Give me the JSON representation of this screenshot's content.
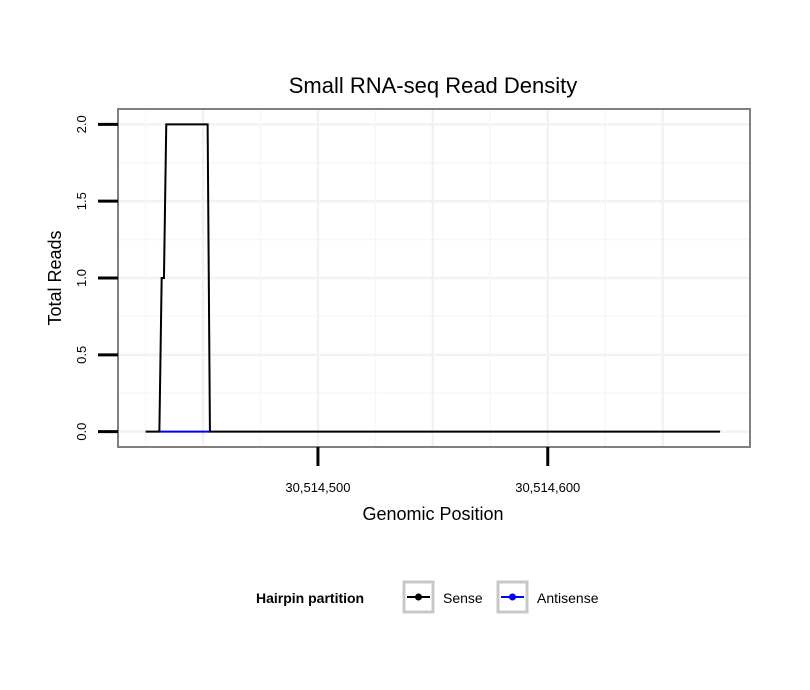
{
  "chart_data": {
    "type": "line",
    "title": "Small RNA-seq Read Density",
    "xlabel": "Genomic Position",
    "ylabel": "Total Reads",
    "xlim": [
      30514413,
      30514688
    ],
    "ylim": [
      -0.1,
      2.1
    ],
    "x_ticks": [
      {
        "value": 30514500,
        "label": "30,514,500"
      },
      {
        "value": 30514600,
        "label": "30,514,600"
      }
    ],
    "y_ticks": [
      {
        "value": 0.0,
        "label": "0.0"
      },
      {
        "value": 0.5,
        "label": "0.5"
      },
      {
        "value": 1.0,
        "label": "1.0"
      },
      {
        "value": 1.5,
        "label": "1.5"
      },
      {
        "value": 2.0,
        "label": "2.0"
      }
    ],
    "grid": true,
    "legend": {
      "title": "Hairpin partition",
      "position": "bottom",
      "entries": [
        "Sense",
        "Antisense"
      ]
    },
    "series": [
      {
        "name": "Sense",
        "color": "#000000",
        "x": [
          30514425,
          30514431,
          30514432,
          30514433,
          30514434,
          30514452,
          30514453,
          30514453.5,
          30514675
        ],
        "y": [
          0,
          0,
          1,
          1,
          2,
          2,
          0,
          0,
          0
        ]
      },
      {
        "name": "Antisense",
        "color": "#0000ff",
        "x": [
          30514431,
          30514453
        ],
        "y": [
          0,
          0
        ]
      }
    ]
  }
}
